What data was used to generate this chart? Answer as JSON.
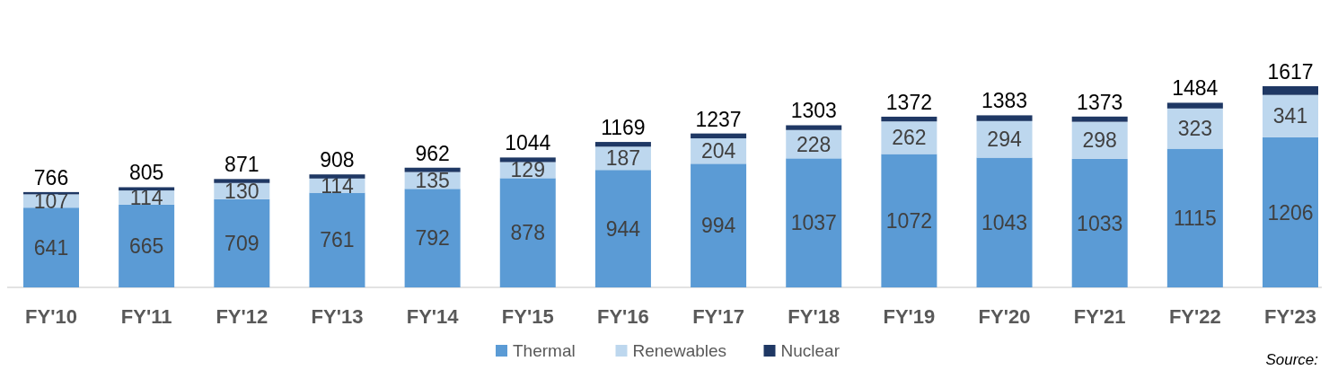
{
  "chart_data": {
    "type": "bar",
    "stacked": true,
    "categories": [
      "FY'10",
      "FY'11",
      "FY'12",
      "FY'13",
      "FY'14",
      "FY'15",
      "FY'16",
      "FY'17",
      "FY'18",
      "FY'19",
      "FY'20",
      "FY'21",
      "FY'22",
      "FY'23"
    ],
    "series": [
      {
        "name": "Thermal",
        "color": "#5b9bd5",
        "values": [
          641,
          665,
          709,
          761,
          792,
          878,
          944,
          994,
          1037,
          1072,
          1043,
          1033,
          1115,
          1206
        ],
        "value_labels": [
          "641",
          "665",
          "709",
          "761",
          "792",
          "878",
          "944",
          "994",
          "1037",
          "1072",
          "1043",
          "1033",
          "1115",
          "1206"
        ]
      },
      {
        "name": "Renewables",
        "color": "#bdd7ee",
        "values": [
          107,
          114,
          130,
          114,
          135,
          129,
          187,
          204,
          228,
          262,
          294,
          298,
          323,
          341
        ],
        "value_labels": [
          "107",
          "114",
          "130",
          "114",
          "135",
          "129",
          "187",
          "204",
          "228",
          "262",
          "294",
          "298",
          "323",
          "341"
        ]
      },
      {
        "name": "Nuclear",
        "color": "#1f3864",
        "values": [
          18,
          26,
          32,
          33,
          35,
          37,
          38,
          39,
          38,
          38,
          46,
          42,
          46,
          70
        ]
      }
    ],
    "totals": [
      "766",
      "805",
      "871",
      "908",
      "962",
      "1044",
      "1169",
      "1237",
      "1303",
      "1372",
      "1383",
      "1373",
      "1484",
      "1617"
    ],
    "legend": "bottom",
    "annotations": [
      "Source:"
    ]
  }
}
